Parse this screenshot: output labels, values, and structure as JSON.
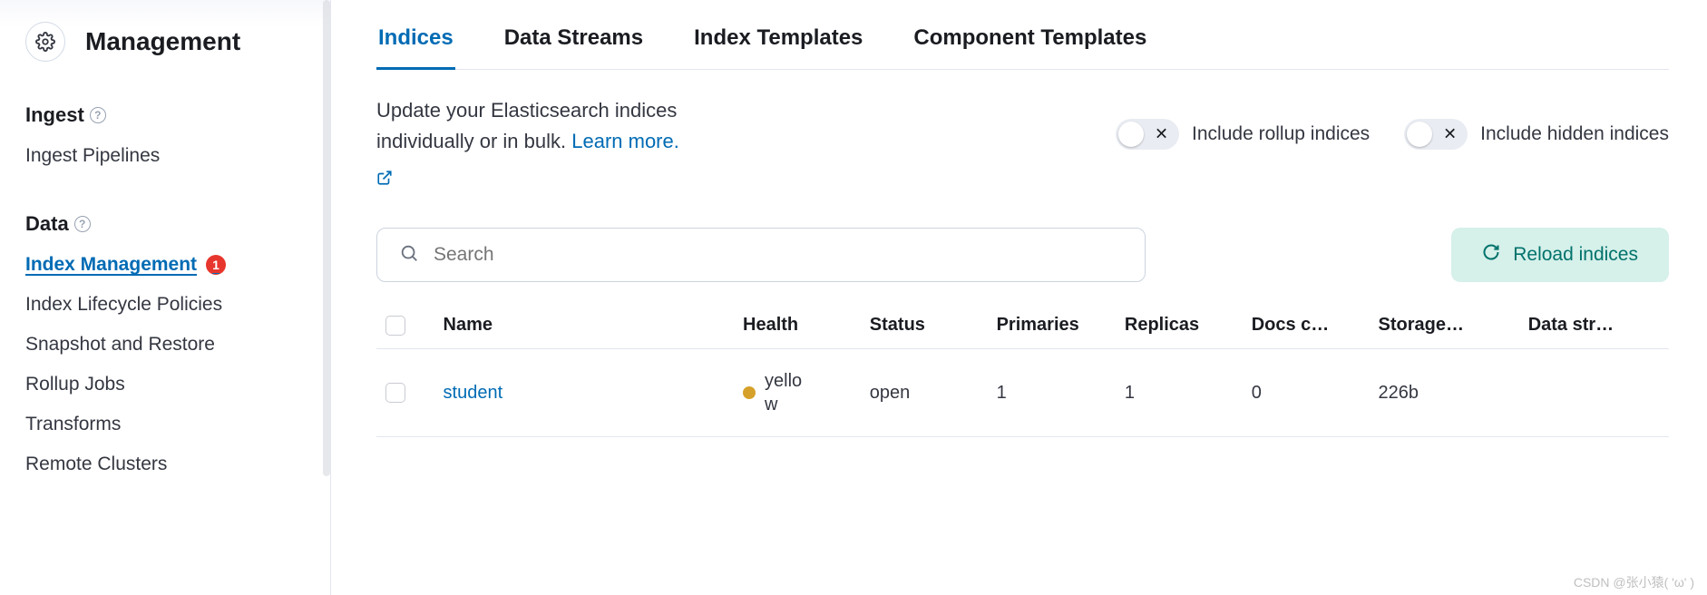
{
  "sidebar": {
    "title": "Management",
    "sections": [
      {
        "heading": "Ingest",
        "items": [
          {
            "label": "Ingest Pipelines",
            "active": false
          }
        ]
      },
      {
        "heading": "Data",
        "items": [
          {
            "label": "Index Management",
            "active": true,
            "badge": "1"
          },
          {
            "label": "Index Lifecycle Policies",
            "active": false
          },
          {
            "label": "Snapshot and Restore",
            "active": false
          },
          {
            "label": "Rollup Jobs",
            "active": false
          },
          {
            "label": "Transforms",
            "active": false
          },
          {
            "label": "Remote Clusters",
            "active": false
          }
        ]
      }
    ]
  },
  "tabs": [
    {
      "label": "Indices",
      "active": true
    },
    {
      "label": "Data Streams",
      "active": false
    },
    {
      "label": "Index Templates",
      "active": false
    },
    {
      "label": "Component Templates",
      "active": false
    }
  ],
  "description": {
    "text": "Update your Elasticsearch indices individually or in bulk. ",
    "link": "Learn more."
  },
  "switches": [
    {
      "label": "Include rollup indices",
      "value": false
    },
    {
      "label": "Include hidden indices",
      "value": false
    }
  ],
  "search": {
    "placeholder": "Search"
  },
  "reload": {
    "label": "Reload indices"
  },
  "table": {
    "columns": [
      "Name",
      "Health",
      "Status",
      "Primaries",
      "Replicas",
      "Docs c…",
      "Storage…",
      "Data str…"
    ],
    "rows": [
      {
        "name": "student",
        "health": {
          "label": "yellow",
          "color": "#d6a12a"
        },
        "status": "open",
        "primaries": "1",
        "replicas": "1",
        "docs": "0",
        "storage": "226b",
        "datastream": ""
      }
    ]
  },
  "colors": {
    "accent": "#006bb4",
    "reload_bg": "#d6f0ea",
    "reload_fg": "#00726b",
    "badge_bg": "#e7362d"
  },
  "watermark": "CSDN @张小猿( 'ω' )"
}
